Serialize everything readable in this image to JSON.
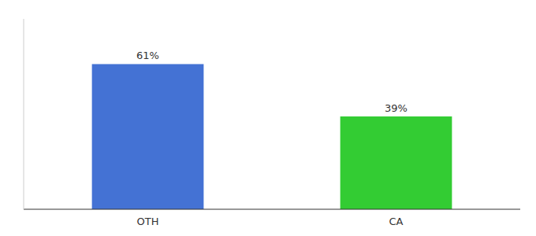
{
  "chart_data": {
    "type": "bar",
    "categories": [
      "OTH",
      "CA"
    ],
    "values": [
      61,
      39
    ],
    "value_labels": [
      "61%",
      "39%"
    ],
    "colors": [
      "#4472D4",
      "#33CC33"
    ],
    "ylim": [
      0,
      80
    ],
    "data_labels": true,
    "tick_labels": "x",
    "grid": false
  }
}
